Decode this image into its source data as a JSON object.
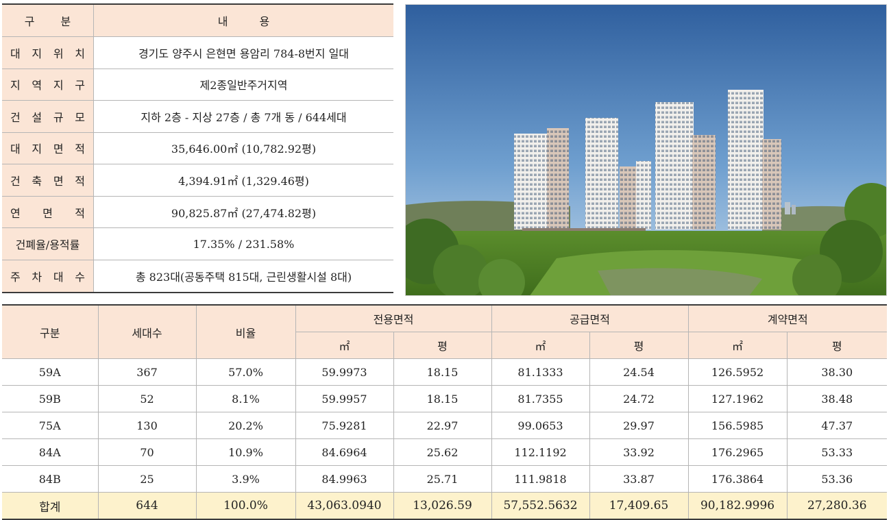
{
  "overview": {
    "header": {
      "category": [
        "구",
        "분"
      ],
      "content": [
        "내",
        "용"
      ]
    },
    "rows": [
      {
        "label": [
          "대",
          "지",
          "위",
          "치"
        ],
        "value": "경기도 양주시 은현면 용암리 784-8번지 일대"
      },
      {
        "label": [
          "지",
          "역",
          "지",
          "구"
        ],
        "value": "제2종일반주거지역"
      },
      {
        "label": [
          "건",
          "설",
          "규",
          "모"
        ],
        "value": "지하 2층 - 지상 27층 / 총 7개 동 / 644세대"
      },
      {
        "label": [
          "대",
          "지",
          "면",
          "적"
        ],
        "value": "35,646.00㎡ (10,782.92평)"
      },
      {
        "label": [
          "건",
          "축",
          "면",
          "적"
        ],
        "value": "4,394.91㎡ (1,329.46평)"
      },
      {
        "label": [
          "연",
          "면",
          "적"
        ],
        "value": "90,825.87㎡ (27,474.82평)"
      },
      {
        "label": [
          "건폐율/용적률"
        ],
        "value": "17.35% / 231.58%"
      },
      {
        "label": [
          "주",
          "차",
          "대",
          "수"
        ],
        "value": "총 823대(공동주택 815대, 근린생활시설 8대)"
      }
    ]
  },
  "units": {
    "headers": {
      "category": "구분",
      "households": "세대수",
      "ratio": "비율",
      "exclusive": "전용면적",
      "supply": "공급면적",
      "contract": "계약면적",
      "sqm": "㎡",
      "pyeong": "평"
    },
    "rows": [
      {
        "type": "59A",
        "households": "367",
        "ratio": "57.0%",
        "ex_m2": "59.9973",
        "ex_py": "18.15",
        "sup_m2": "81.1333",
        "sup_py": "24.54",
        "con_m2": "126.5952",
        "con_py": "38.30"
      },
      {
        "type": "59B",
        "households": "52",
        "ratio": "8.1%",
        "ex_m2": "59.9957",
        "ex_py": "18.15",
        "sup_m2": "81.7355",
        "sup_py": "24.72",
        "con_m2": "127.1962",
        "con_py": "38.48"
      },
      {
        "type": "75A",
        "households": "130",
        "ratio": "20.2%",
        "ex_m2": "75.9281",
        "ex_py": "22.97",
        "sup_m2": "99.0653",
        "sup_py": "29.97",
        "con_m2": "156.5985",
        "con_py": "47.37"
      },
      {
        "type": "84A",
        "households": "70",
        "ratio": "10.9%",
        "ex_m2": "84.6964",
        "ex_py": "25.62",
        "sup_m2": "112.1192",
        "sup_py": "33.92",
        "con_m2": "176.2965",
        "con_py": "53.33"
      },
      {
        "type": "84B",
        "households": "25",
        "ratio": "3.9%",
        "ex_m2": "84.9963",
        "ex_py": "25.71",
        "sup_m2": "111.9818",
        "sup_py": "33.87",
        "con_m2": "176.3864",
        "con_py": "53.36"
      }
    ],
    "total": {
      "type": "합계",
      "households": "644",
      "ratio": "100.0%",
      "ex_m2": "43,063.0940",
      "ex_py": "13,026.59",
      "sup_m2": "57,552.5632",
      "sup_py": "17,409.65",
      "con_m2": "90,182.9996",
      "con_py": "27,280.36"
    }
  },
  "colors": {
    "header_bg": "#fbe5d6",
    "total_bg": "#fdf2cc",
    "rule": "#3a3a3a"
  }
}
